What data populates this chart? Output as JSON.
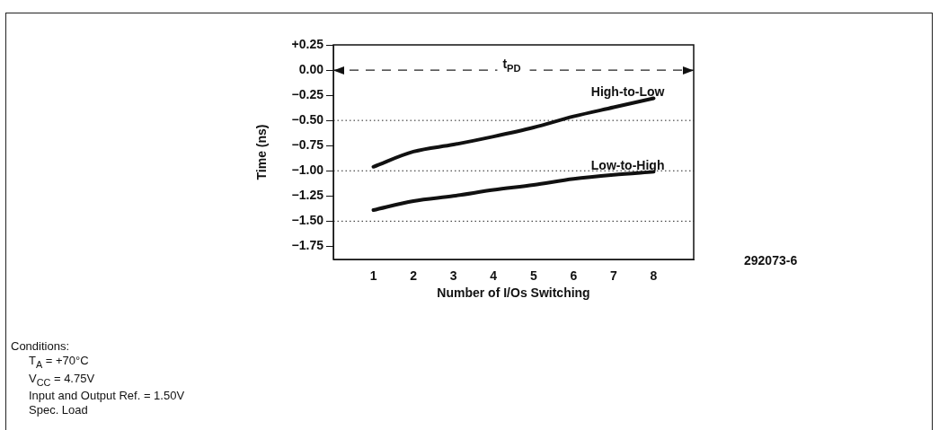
{
  "chart_data": {
    "type": "line",
    "xlabel": "Number of I/Os Switching",
    "ylabel": "Time (ns)",
    "x": [
      1,
      2,
      3,
      4,
      5,
      6,
      7,
      8
    ],
    "series": [
      {
        "name": "High-to-Low",
        "color": "#111111",
        "values": [
          -0.96,
          -0.81,
          -0.74,
          -0.66,
          -0.57,
          -0.46,
          -0.37,
          -0.28
        ]
      },
      {
        "name": "Low-to-High",
        "color": "#111111",
        "values": [
          -1.39,
          -1.3,
          -1.25,
          -1.19,
          -1.14,
          -1.08,
          -1.04,
          -1.01
        ]
      }
    ],
    "xlim": [
      0,
      9
    ],
    "xticks": [
      1,
      2,
      3,
      4,
      5,
      6,
      7,
      8
    ],
    "ylim": [
      -1.88,
      0.25
    ],
    "yticks": [
      {
        "value": 0.25,
        "label": "+0.25"
      },
      {
        "value": 0,
        "label": "0.00"
      },
      {
        "value": -0.25,
        "label": "−0.25"
      },
      {
        "value": -0.5,
        "label": "−0.50"
      },
      {
        "value": -0.75,
        "label": "−0.75"
      },
      {
        "value": -1,
        "label": "−1.00"
      },
      {
        "value": -1.25,
        "label": "−1.25"
      },
      {
        "value": -1.5,
        "label": "−1.50"
      },
      {
        "value": -1.75,
        "label": "−1.75"
      }
    ],
    "ref_lines": [
      {
        "axis": "y",
        "value": 0,
        "label": "t$_{PD}$",
        "line_style": "dashed"
      },
      {
        "axis": "y",
        "value": -0.5,
        "line_style": "dotted"
      },
      {
        "axis": "y",
        "value": -1,
        "line_style": "dotted"
      },
      {
        "axis": "y",
        "value": -1.5,
        "line_style": "dotted"
      }
    ],
    "marker": "none",
    "legend": false,
    "grid": false,
    "annotations": [
      "292073-6",
      "Conditions:",
      "T$_{A}$ = +70°C",
      "V$_{CC}$ = 4.75V",
      "Input and Output Ref. = 1.50V",
      "Spec. Load"
    ]
  }
}
